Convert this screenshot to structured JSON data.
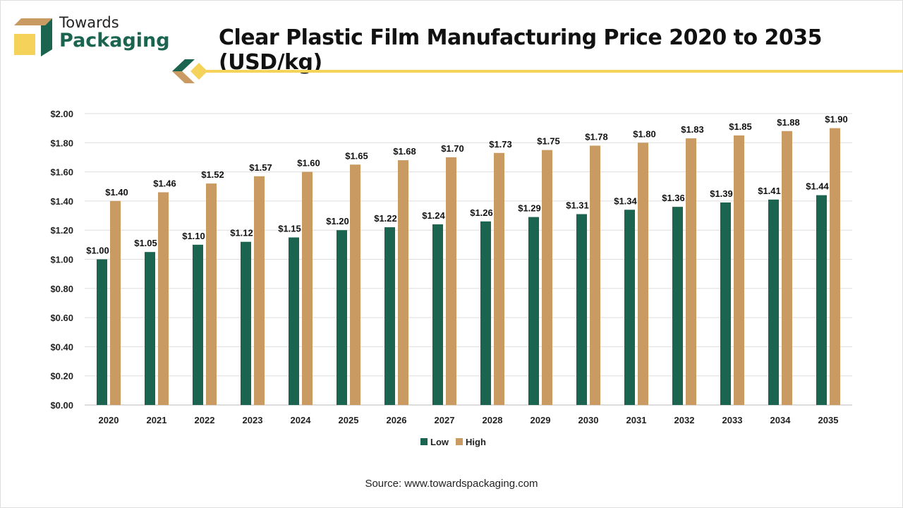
{
  "brand": {
    "line1": "Towards",
    "line2": "Packaging"
  },
  "title": "Clear Plastic Film Manufacturing Price 2020 to 2035 (USD/kg)",
  "source": "Source: www.towardspackaging.com",
  "colors": {
    "low": "#1b6550",
    "high": "#c99a62",
    "accent": "#f5d35a"
  },
  "chart_data": {
    "type": "bar",
    "title": "Clear Plastic Film Manufacturing Price 2020 to 2035 (USD/kg)",
    "categories": [
      "2020",
      "2021",
      "2022",
      "2023",
      "2024",
      "2025",
      "2026",
      "2027",
      "2028",
      "2029",
      "2030",
      "2031",
      "2032",
      "2033",
      "2034",
      "2035"
    ],
    "series": [
      {
        "name": "Low",
        "values": [
          1.0,
          1.05,
          1.1,
          1.12,
          1.15,
          1.2,
          1.22,
          1.24,
          1.26,
          1.29,
          1.31,
          1.34,
          1.36,
          1.39,
          1.41,
          1.44
        ]
      },
      {
        "name": "High",
        "values": [
          1.4,
          1.46,
          1.52,
          1.57,
          1.6,
          1.65,
          1.68,
          1.7,
          1.73,
          1.75,
          1.78,
          1.8,
          1.83,
          1.85,
          1.88,
          1.9
        ]
      }
    ],
    "yticks": [
      "$0.00",
      "$0.20",
      "$0.40",
      "$0.60",
      "$0.80",
      "$1.00",
      "$1.20",
      "$1.40",
      "$1.60",
      "$1.80",
      "$2.00"
    ],
    "ylim": [
      0,
      2
    ],
    "grid": true,
    "legend": "bottom"
  }
}
